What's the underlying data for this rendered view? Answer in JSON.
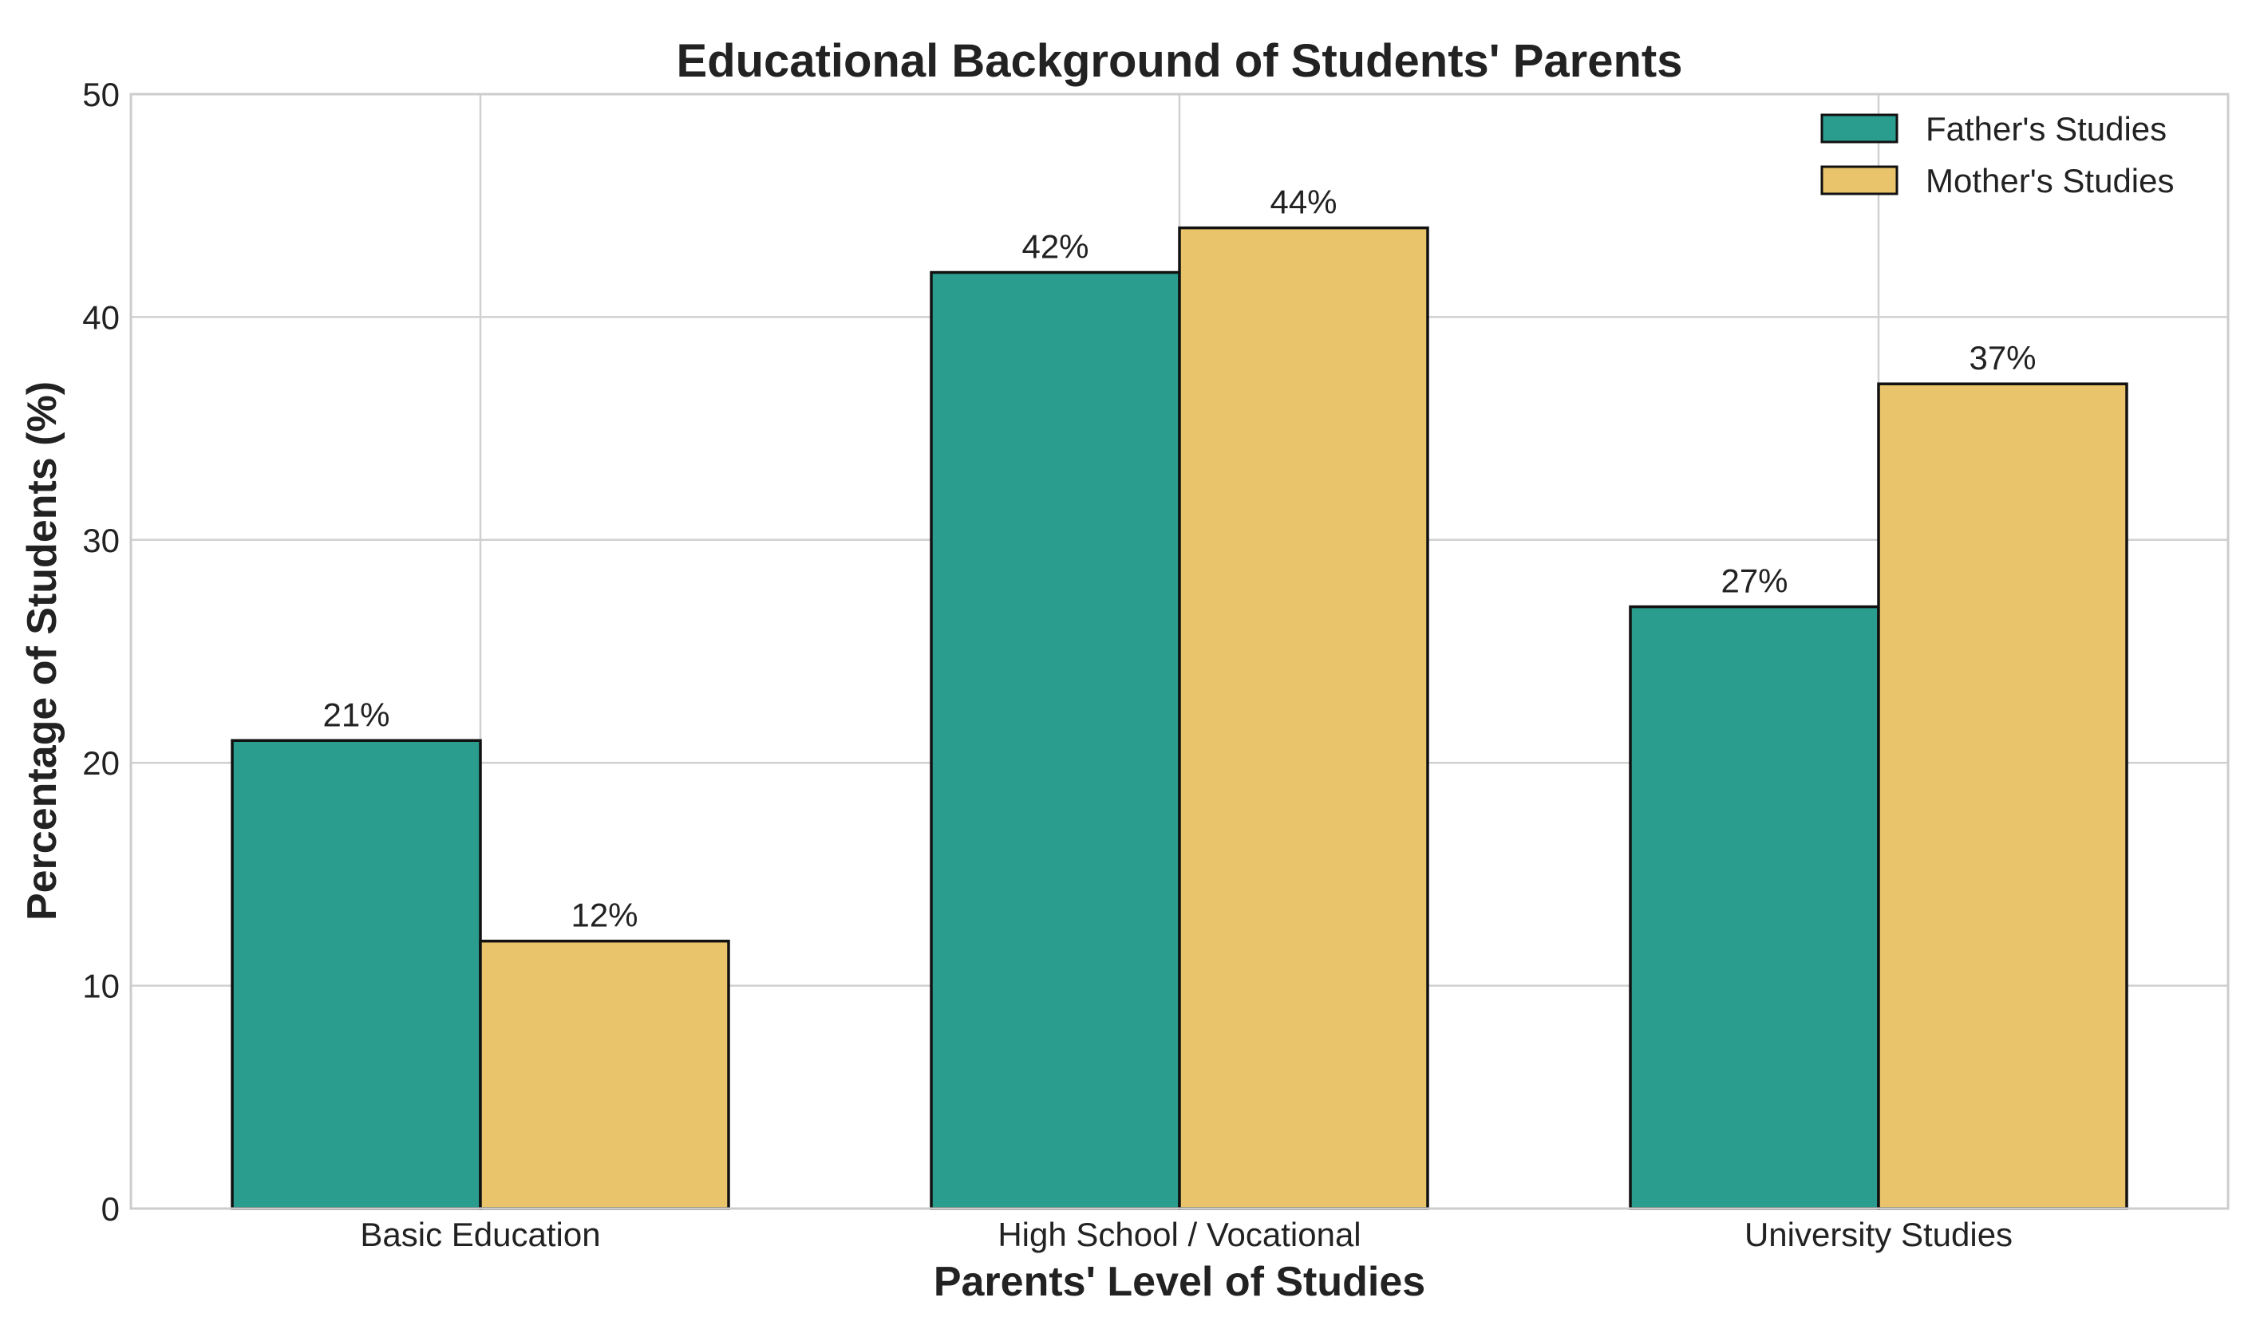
{
  "chart_data": {
    "type": "bar",
    "title": "Educational Background of Students' Parents",
    "xlabel": "Parents' Level of Studies",
    "ylabel": "Percentage of Students (%)",
    "categories": [
      "Basic Education",
      "High School / Vocational",
      "University Studies"
    ],
    "series": [
      {
        "name": "Father's Studies",
        "color": "#2a9d8f",
        "values": [
          21,
          42,
          27
        ],
        "labels": [
          "21%",
          "42%",
          "27%"
        ]
      },
      {
        "name": "Mother's Studies",
        "color": "#e9c46a",
        "values": [
          12,
          44,
          37
        ],
        "labels": [
          "12%",
          "44%",
          "37%"
        ]
      }
    ],
    "ylim": [
      0,
      50
    ],
    "yticks": [
      0,
      10,
      20,
      30,
      40,
      50
    ],
    "grid": true,
    "legend": "top-right"
  }
}
